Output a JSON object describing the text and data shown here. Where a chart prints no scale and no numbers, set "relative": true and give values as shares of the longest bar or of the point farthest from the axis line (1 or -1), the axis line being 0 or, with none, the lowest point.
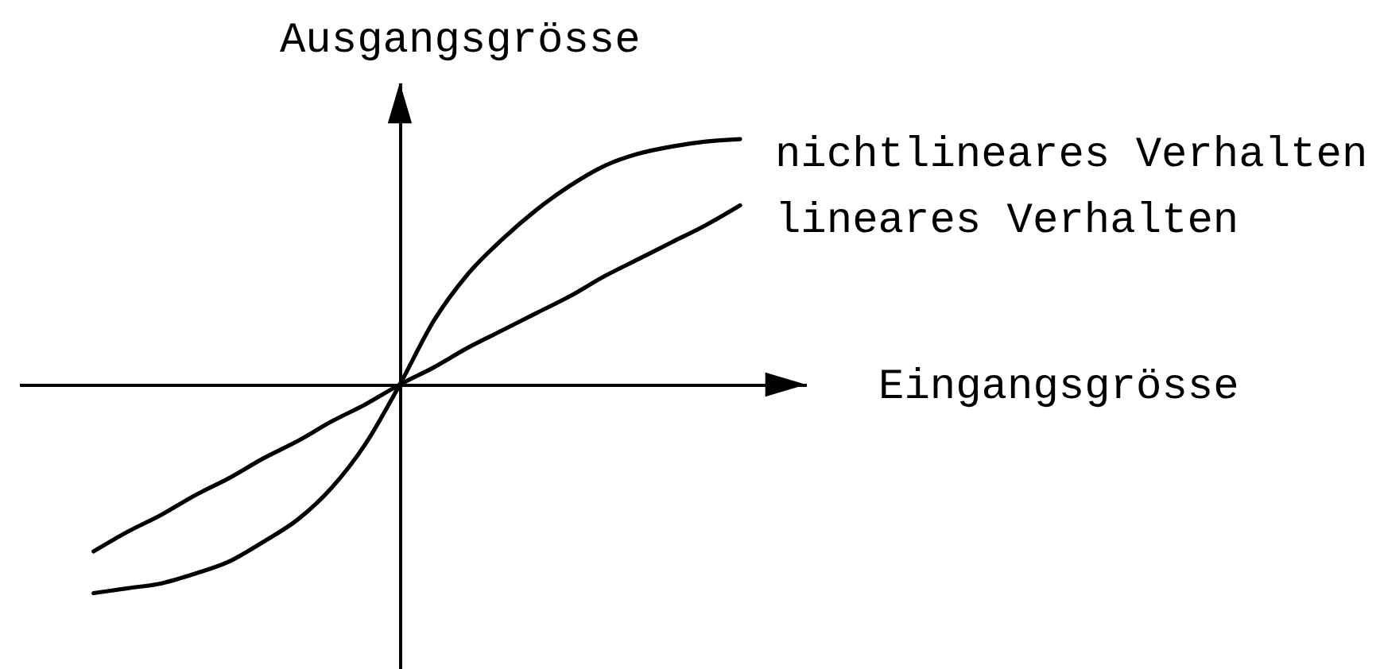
{
  "chart_data": {
    "type": "line",
    "xlabel": "Eingangsgrösse",
    "ylabel": "Ausgangsgrösse",
    "relative": true,
    "categories": [
      null,
      null,
      null,
      null,
      null,
      null,
      null,
      null,
      null,
      null,
      null,
      null,
      null,
      null,
      null,
      null,
      null,
      null,
      null,
      null
    ],
    "series": [
      {
        "name": "nichtlineares Verhalten",
        "color": "#000000",
        "values": [
          -0.85,
          -0.83,
          -0.81,
          -0.77,
          -0.72,
          -0.64,
          -0.55,
          -0.42,
          -0.24,
          0,
          0.26,
          0.45,
          0.59,
          0.71,
          0.81,
          0.89,
          0.94,
          0.97,
          0.99,
          1.0
        ]
      },
      {
        "name": "lineares Verhalten",
        "color": "#000000",
        "values": [
          -0.68,
          -0.6,
          -0.53,
          -0.45,
          -0.38,
          -0.3,
          -0.23,
          -0.15,
          -0.08,
          0,
          0.07,
          0.15,
          0.22,
          0.29,
          0.36,
          0.44,
          0.51,
          0.58,
          0.65,
          0.73
        ]
      }
    ],
    "legend": false,
    "grid": false,
    "tick_labels": false,
    "marker": "none",
    "line_style": "solid"
  }
}
